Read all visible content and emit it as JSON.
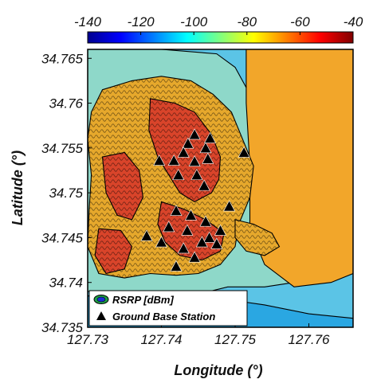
{
  "chart_data": {
    "type": "heatmap",
    "xlabel": "Longitude (°)",
    "ylabel": "Latitude (°)",
    "xlim": [
      127.73,
      127.766
    ],
    "ylim": [
      34.735,
      34.766
    ],
    "x_ticks": [
      "127.73",
      "127.74",
      "127.75",
      "127.76"
    ],
    "x_tick_values": [
      127.73,
      127.74,
      127.75,
      127.76
    ],
    "y_ticks": [
      "34.765",
      "34.76",
      "34.755",
      "34.75",
      "34.745",
      "34.74",
      "34.735"
    ],
    "y_tick_values": [
      34.765,
      34.76,
      34.755,
      34.75,
      34.745,
      34.74,
      34.735
    ],
    "colorbar": {
      "range": [
        -140,
        -40
      ],
      "ticks": [
        "-140",
        "-120",
        "-100",
        "-80",
        "-60",
        "-40"
      ],
      "tick_values": [
        -140,
        -120,
        -100,
        -80,
        -60,
        -40
      ],
      "colormap": "jet"
    },
    "legend": {
      "placement": "bottom-left",
      "entries": [
        "RSRP [dBm]",
        "Ground Base Station"
      ]
    },
    "series": [
      {
        "name": "Ground Base Station",
        "points": [
          [
            127.7436,
            34.7555
          ],
          [
            127.7445,
            34.7565
          ],
          [
            127.746,
            34.755
          ],
          [
            127.7466,
            34.7561
          ],
          [
            127.7397,
            34.7536
          ],
          [
            127.7417,
            34.7536
          ],
          [
            127.743,
            34.7545
          ],
          [
            127.7445,
            34.7535
          ],
          [
            127.7463,
            34.7538
          ],
          [
            127.7423,
            34.752
          ],
          [
            127.7448,
            34.752
          ],
          [
            127.7512,
            34.7545
          ],
          [
            127.7458,
            34.7508
          ],
          [
            127.742,
            34.748
          ],
          [
            127.744,
            34.7475
          ],
          [
            127.746,
            34.7468
          ],
          [
            127.7492,
            34.7485
          ],
          [
            127.741,
            34.7462
          ],
          [
            127.7435,
            34.7458
          ],
          [
            127.7465,
            34.745
          ],
          [
            127.748,
            34.7458
          ],
          [
            127.74,
            34.7445
          ],
          [
            127.743,
            34.7438
          ],
          [
            127.7455,
            34.7445
          ],
          [
            127.7475,
            34.7443
          ],
          [
            127.742,
            34.7418
          ],
          [
            127.7445,
            34.7428
          ],
          [
            127.738,
            34.7452
          ]
        ]
      }
    ],
    "regions": {
      "land_high": [
        [
          [
            127.7385,
            34.7605
          ],
          [
            127.7418,
            34.76
          ],
          [
            127.7445,
            34.759
          ],
          [
            127.7468,
            34.7565
          ],
          [
            127.748,
            34.754
          ],
          [
            127.7478,
            34.7515
          ],
          [
            127.7468,
            34.75
          ],
          [
            127.7445,
            34.749
          ],
          [
            127.7425,
            34.75
          ],
          [
            127.741,
            34.752
          ],
          [
            127.7395,
            34.754
          ],
          [
            127.7383,
            34.757
          ]
        ],
        [
          [
            127.732,
            34.754
          ],
          [
            127.735,
            34.7545
          ],
          [
            127.737,
            34.7525
          ],
          [
            127.7375,
            34.7495
          ],
          [
            127.736,
            34.747
          ],
          [
            127.734,
            34.7475
          ],
          [
            127.7325,
            34.75
          ]
        ],
        [
          [
            127.74,
            34.749
          ],
          [
            127.743,
            34.7482
          ],
          [
            127.746,
            34.747
          ],
          [
            127.7485,
            34.7455
          ],
          [
            127.748,
            34.7435
          ],
          [
            127.7455,
            34.7425
          ],
          [
            127.7425,
            34.743
          ],
          [
            127.7405,
            34.7445
          ],
          [
            127.7395,
            34.7465
          ]
        ],
        [
          [
            127.7315,
            34.746
          ],
          [
            127.7345,
            34.7458
          ],
          [
            127.736,
            34.744
          ],
          [
            127.735,
            34.7415
          ],
          [
            127.7325,
            34.741
          ],
          [
            127.731,
            34.743
          ]
        ]
      ],
      "land_mid": [
        [
          [
            127.732,
            34.7615
          ],
          [
            127.736,
            34.7625
          ],
          [
            127.74,
            34.763
          ],
          [
            127.744,
            34.7625
          ],
          [
            127.747,
            34.761
          ],
          [
            127.7495,
            34.759
          ],
          [
            127.751,
            34.756
          ],
          [
            127.7525,
            34.753
          ],
          [
            127.752,
            34.7495
          ],
          [
            127.7505,
            34.7465
          ],
          [
            127.75,
            34.744
          ],
          [
            127.748,
            34.742
          ],
          [
            127.745,
            34.741
          ],
          [
            127.742,
            34.7408
          ],
          [
            127.7385,
            34.741
          ],
          [
            127.735,
            34.7405
          ],
          [
            127.7315,
            34.741
          ],
          [
            127.73,
            34.744
          ],
          [
            127.7302,
            34.748
          ],
          [
            127.7305,
            34.752
          ],
          [
            127.73,
            34.756
          ],
          [
            127.7305,
            34.759
          ]
        ],
        [
          [
            127.75,
            34.747
          ],
          [
            127.7525,
            34.7465
          ],
          [
            127.755,
            34.7455
          ],
          [
            127.756,
            34.744
          ],
          [
            127.754,
            34.743
          ],
          [
            127.7515,
            34.7435
          ],
          [
            127.75,
            34.745
          ]
        ]
      ],
      "water_shallow": [
        [
          [
            127.73,
            34.766
          ],
          [
            127.74,
            34.766
          ],
          [
            127.7475,
            34.7655
          ],
          [
            127.75,
            34.764
          ],
          [
            127.752,
            34.761
          ],
          [
            127.754,
            34.759
          ],
          [
            127.756,
            34.755
          ],
          [
            127.758,
            34.749
          ],
          [
            127.759,
            34.745
          ],
          [
            127.76,
            34.742
          ],
          [
            127.758,
            34.74
          ],
          [
            127.754,
            34.7395
          ],
          [
            127.749,
            34.7395
          ],
          [
            127.744,
            34.7385
          ],
          [
            127.739,
            34.738
          ],
          [
            127.734,
            34.7385
          ],
          [
            127.73,
            34.739
          ]
        ]
      ],
      "water_deep": [
        [
          [
            127.73,
            34.749
          ],
          [
            127.7325,
            34.747
          ],
          [
            127.7335,
            34.744
          ],
          [
            127.732,
            34.741
          ],
          [
            127.73,
            34.74
          ]
        ],
        [
          [
            127.73,
            34.7385
          ],
          [
            127.736,
            34.7383
          ],
          [
            127.742,
            34.7378
          ],
          [
            127.748,
            34.7382
          ],
          [
            127.754,
            34.7375
          ],
          [
            127.76,
            34.7365
          ],
          [
            127.766,
            34.736
          ],
          [
            127.766,
            34.735
          ],
          [
            127.73,
            34.735
          ]
        ]
      ],
      "sea_near": [
        [
          [
            127.7515,
            34.766
          ],
          [
            127.766,
            34.766
          ],
          [
            127.766,
            34.741
          ],
          [
            127.763,
            34.74
          ],
          [
            127.758,
            34.7395
          ],
          [
            127.754,
            34.742
          ],
          [
            127.752,
            34.746
          ],
          [
            127.752,
            34.753
          ],
          [
            127.7515,
            34.76
          ]
        ]
      ]
    }
  }
}
